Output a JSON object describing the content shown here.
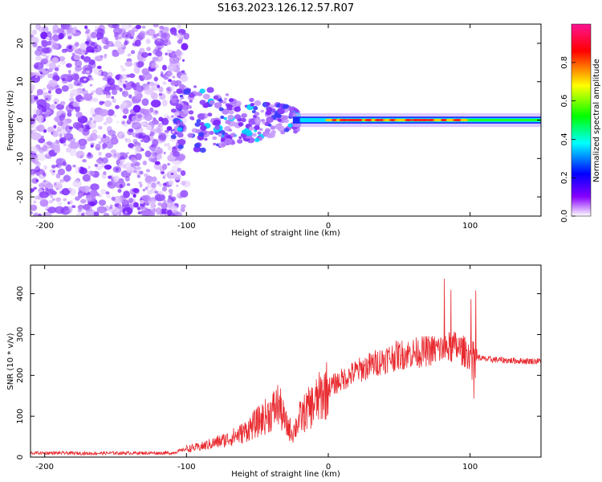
{
  "title": "S163.2023.126.12.57.R07",
  "chart_data": [
    {
      "type": "heatmap",
      "xlabel": "Height of straight line (km)",
      "ylabel": "Frequency (Hz)",
      "xlim": [
        -210,
        150
      ],
      "ylim": [
        -25,
        25
      ],
      "x_ticks": [
        -200,
        -100,
        0,
        100
      ],
      "y_ticks": [
        -20,
        -10,
        0,
        10,
        20
      ],
      "colorbar": {
        "label": "Normalized spectral amplitude",
        "range": [
          0.0,
          1.0
        ],
        "ticks": [
          0.0,
          0.2,
          0.4,
          0.6,
          0.8
        ],
        "colormap": [
          "#ff00ff",
          "#ff0000",
          "#ffff00",
          "#00ff00",
          "#00ffff",
          "#0000ff",
          "#8800ff",
          "#ffffff"
        ]
      },
      "features": {
        "noise_region_x": [
          -210,
          -110
        ],
        "signal_line_x": [
          -25,
          150
        ],
        "signal_line_frequency_hz": 0
      }
    },
    {
      "type": "line",
      "xlabel": "Height of straight line (km)",
      "ylabel": "SNR (10 * v/v)",
      "xlim": [
        -210,
        150
      ],
      "ylim": [
        0,
        470
      ],
      "x_ticks": [
        -200,
        -100,
        0,
        100
      ],
      "y_ticks": [
        0,
        100,
        200,
        300,
        400
      ],
      "series": [
        {
          "color": "#e8292e",
          "x": [
            -210,
            -190,
            -170,
            -150,
            -130,
            -110,
            -100,
            -90,
            -80,
            -70,
            -60,
            -50,
            -40,
            -35,
            -30,
            -25,
            -20,
            -15,
            -10,
            -5,
            0,
            5,
            10,
            20,
            30,
            40,
            50,
            60,
            70,
            80,
            90,
            95,
            100,
            105,
            110,
            120,
            130,
            140,
            150
          ],
          "y": [
            10,
            10,
            9,
            10,
            10,
            10,
            20,
            25,
            35,
            45,
            60,
            85,
            110,
            130,
            80,
            60,
            95,
            115,
            130,
            150,
            170,
            180,
            190,
            210,
            225,
            240,
            250,
            255,
            260,
            265,
            270,
            260,
            250,
            245,
            240,
            238,
            236,
            235,
            235
          ]
        }
      ]
    }
  ]
}
